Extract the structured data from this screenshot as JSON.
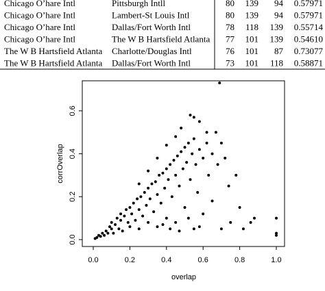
{
  "table": {
    "rows": [
      [
        "Chicago O’hare Intl",
        "Pittsburgh Intll",
        "80",
        "139",
        "94",
        "0.57971"
      ],
      [
        "Chicago O’hare Intl",
        "Lambert-St Louis Intl",
        "80",
        "139",
        "94",
        "0.57971"
      ],
      [
        "Chicago O’hare Intl",
        "Dallas/Fort Worth Intl",
        "78",
        "118",
        "139",
        "0.55714"
      ],
      [
        "Chicago O’hare Intl",
        "The W B Hartsfield Atlanta",
        "77",
        "101",
        "139",
        "0.54610"
      ],
      [
        "The W B Hartsfield Atlanta",
        "Charlotte/Douglas Intl",
        "76",
        "101",
        "87",
        "0.73077"
      ],
      [
        "The W B Hartsfield Atlanta",
        "Dallas/Fort Worth Intl",
        "73",
        "101",
        "118",
        "0.58871"
      ]
    ]
  },
  "chart_data": {
    "type": "scatter",
    "x_label": "overlap",
    "y_label": "corrOverlap",
    "color": "#000000",
    "xlim": [
      -0.06,
      1.045
    ],
    "ylim": [
      -0.032,
      0.74
    ],
    "xticks": [
      {
        "value": 0,
        "label": "0.0"
      },
      {
        "value": 0.2,
        "label": "0.2"
      },
      {
        "value": 0.4,
        "label": "0.4"
      },
      {
        "value": 0.6,
        "label": "0.6"
      },
      {
        "value": 0.8,
        "label": "0.8"
      },
      {
        "value": 1,
        "label": "1.0"
      }
    ],
    "yticks": [
      {
        "value": 0,
        "label": "0.0"
      },
      {
        "value": 0.2,
        "label": "0.2"
      },
      {
        "value": 0.4,
        "label": "0.4"
      },
      {
        "value": 0.6,
        "label": "0.6"
      }
    ],
    "x": [
      0.01,
      0.02,
      0.03,
      0.04,
      0.05,
      0.06,
      0.07,
      0.08,
      0.09,
      0.1,
      0.1,
      0.11,
      0.12,
      0.13,
      0.14,
      0.15,
      0.15,
      0.16,
      0.17,
      0.18,
      0.19,
      0.2,
      0.2,
      0.21,
      0.22,
      0.23,
      0.24,
      0.25,
      0.25,
      0.26,
      0.27,
      0.28,
      0.29,
      0.3,
      0.3,
      0.31,
      0.32,
      0.33,
      0.34,
      0.35,
      0.35,
      0.36,
      0.37,
      0.38,
      0.39,
      0.4,
      0.4,
      0.41,
      0.42,
      0.43,
      0.44,
      0.45,
      0.45,
      0.46,
      0.47,
      0.48,
      0.49,
      0.5,
      0.5,
      0.51,
      0.52,
      0.53,
      0.54,
      0.55,
      0.55,
      0.56,
      0.57,
      0.58,
      0.6,
      0.6,
      0.62,
      0.63,
      0.65,
      0.65,
      0.67,
      0.68,
      0.7,
      0.7,
      0.72,
      0.74,
      0.75,
      0.78,
      0.8,
      0.82,
      0.86,
      0.88,
      1.0,
      1.0,
      1.0,
      0.69,
      0.53,
      0.55,
      0.58,
      0.48,
      0.62,
      0.45,
      0.4,
      0.35,
      0.3,
      0.25,
      0.42,
      0.47,
      0.38,
      0.52,
      0.58
    ],
    "y": [
      0.005,
      0.01,
      0.02,
      0.015,
      0.03,
      0.02,
      0.04,
      0.03,
      0.06,
      0.05,
      0.08,
      0.03,
      0.07,
      0.1,
      0.05,
      0.09,
      0.12,
      0.04,
      0.11,
      0.14,
      0.08,
      0.15,
      0.06,
      0.12,
      0.17,
      0.09,
      0.19,
      0.14,
      0.05,
      0.2,
      0.11,
      0.22,
      0.16,
      0.24,
      0.08,
      0.19,
      0.26,
      0.13,
      0.27,
      0.21,
      0.06,
      0.3,
      0.17,
      0.31,
      0.24,
      0.33,
      0.1,
      0.28,
      0.35,
      0.2,
      0.37,
      0.3,
      0.08,
      0.39,
      0.25,
      0.41,
      0.33,
      0.43,
      0.15,
      0.36,
      0.45,
      0.28,
      0.4,
      0.47,
      0.05,
      0.35,
      0.22,
      0.42,
      0.38,
      0.12,
      0.45,
      0.3,
      0.4,
      0.18,
      0.5,
      0.35,
      0.45,
      0.05,
      0.38,
      0.25,
      0.08,
      0.3,
      0.15,
      0.05,
      0.08,
      0.1,
      0.1,
      0.03,
      0.02,
      0.73,
      0.58,
      0.57,
      0.55,
      0.52,
      0.5,
      0.48,
      0.44,
      0.38,
      0.32,
      0.26,
      0.05,
      0.04,
      0.07,
      0.1,
      0.06
    ]
  }
}
